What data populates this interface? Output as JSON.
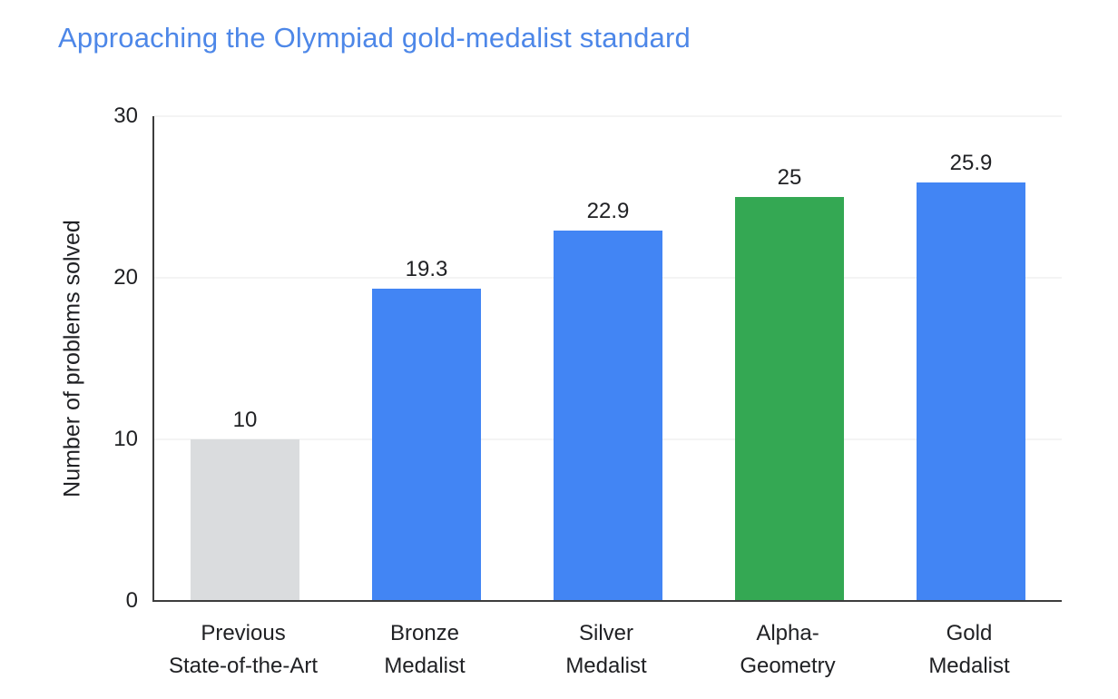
{
  "page": {
    "background": "#ffffff"
  },
  "colors": {
    "title": "#4d87e8",
    "text": "#202124",
    "grid": "#e8e8e8",
    "axis": "#3d3d3d"
  },
  "chart_data": {
    "type": "bar",
    "title": "Approaching the Olympiad gold-medalist standard",
    "xlabel": "",
    "ylabel": "Number of problems solved",
    "categories": [
      "Previous\nState-of-the-Art",
      "Bronze\nMedalist",
      "Silver\nMedalist",
      "Alpha-\nGeometry",
      "Gold\nMedalist"
    ],
    "values": [
      10,
      19.3,
      22.9,
      25,
      25.9
    ],
    "value_labels": [
      "10",
      "19.3",
      "22.9",
      "25",
      "25.9"
    ],
    "bar_colors": [
      "#dadcde",
      "#4285f4",
      "#4285f4",
      "#34a853",
      "#4285f4"
    ],
    "ylim": [
      0,
      30
    ],
    "yticks": [
      0,
      10,
      20,
      30
    ],
    "grid": "horizontal",
    "legend": "none"
  }
}
